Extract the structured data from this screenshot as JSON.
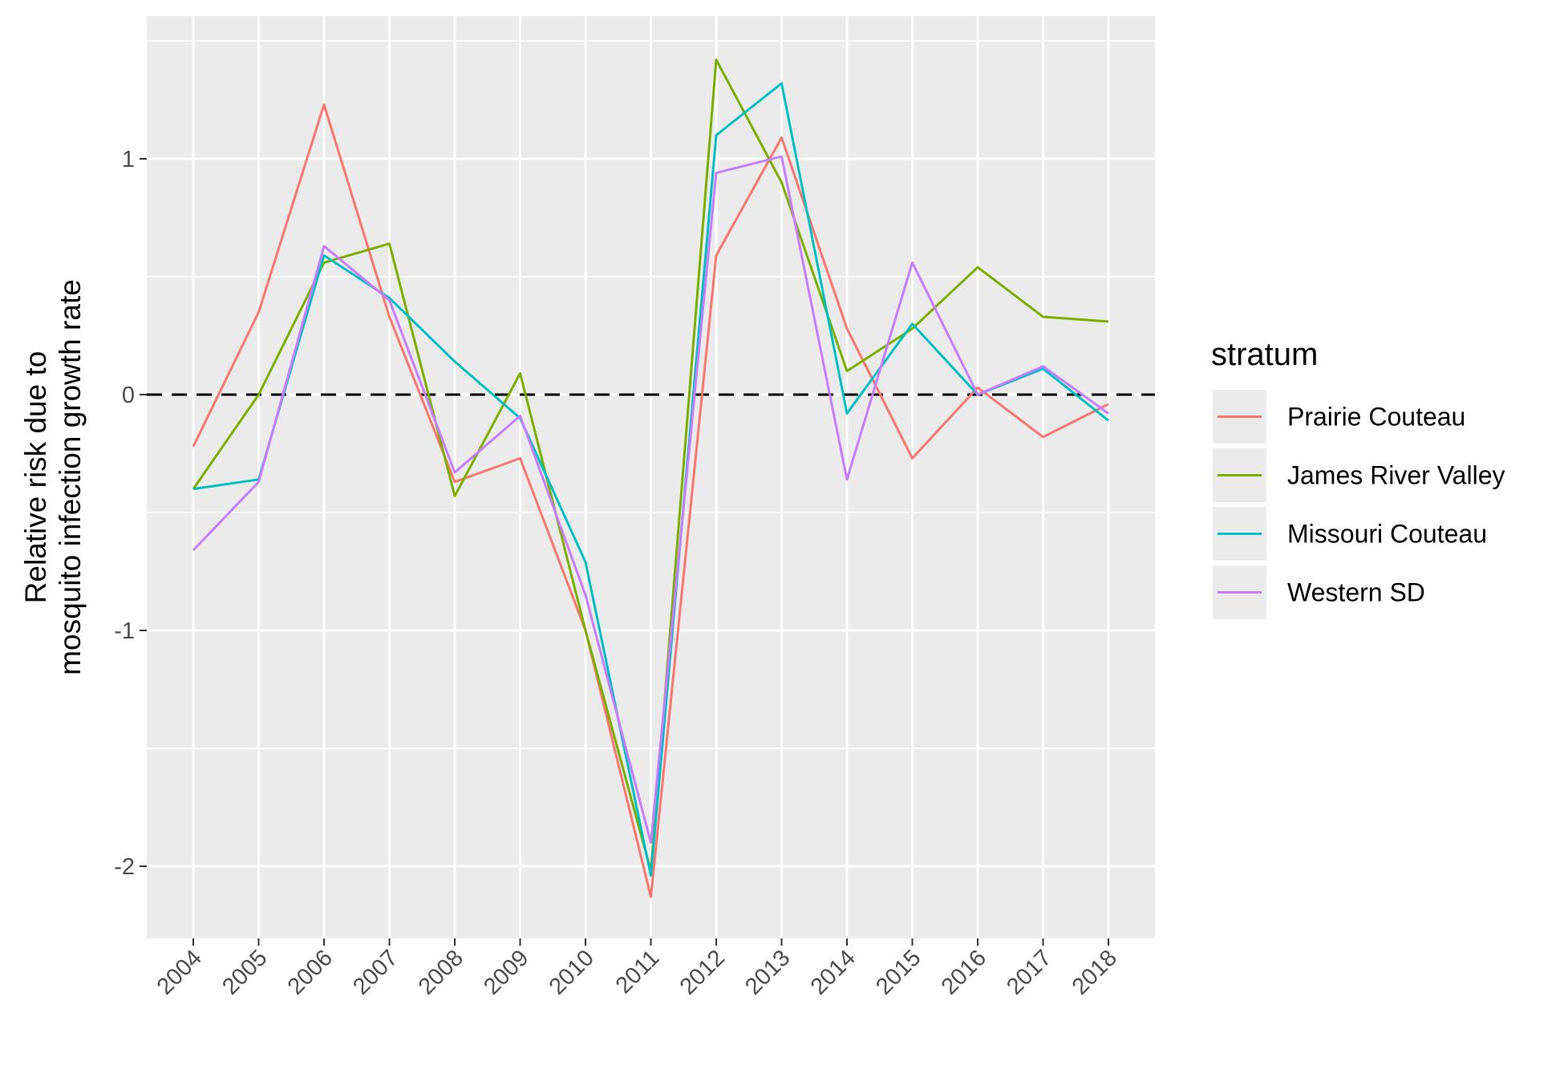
{
  "chart_data": {
    "type": "line",
    "x": [
      "2004",
      "2005",
      "2006",
      "2007",
      "2008",
      "2009",
      "2010",
      "2011",
      "2012",
      "2013",
      "2014",
      "2015",
      "2016",
      "2017",
      "2018"
    ],
    "ylabel": [
      "Relative risk due to",
      "mosquito infection growth rate"
    ],
    "xlabel": "",
    "title": "",
    "ylim": [
      -2.3,
      1.6
    ],
    "yticks": [
      -2,
      -1,
      0,
      1
    ],
    "ytick_labels": [
      "-2",
      "-1",
      "0",
      "1"
    ],
    "reference_line": {
      "y": 0,
      "style": "dashed",
      "color": "#000000"
    },
    "grid": true,
    "legend": {
      "title": "stratum",
      "position": "right"
    },
    "series": [
      {
        "name": "Prairie Couteau",
        "color": "#F8766D",
        "values": [
          -0.22,
          0.35,
          1.23,
          0.33,
          -0.37,
          -0.27,
          -1.0,
          -2.13,
          0.59,
          1.09,
          0.28,
          -0.27,
          0.03,
          -0.18,
          -0.04
        ]
      },
      {
        "name": "James River Valley",
        "color": "#7CAE00",
        "values": [
          -0.4,
          0.0,
          0.56,
          0.64,
          -0.43,
          0.09,
          -1.0,
          -2.02,
          1.42,
          0.9,
          0.1,
          0.28,
          0.54,
          0.33,
          0.31
        ]
      },
      {
        "name": "Missouri Couteau",
        "color": "#00BFC4",
        "values": [
          -0.4,
          -0.36,
          0.59,
          0.41,
          0.14,
          -0.1,
          -0.71,
          -2.04,
          1.1,
          1.32,
          -0.08,
          0.3,
          0.0,
          0.11,
          -0.11
        ]
      },
      {
        "name": "Western SD",
        "color": "#C77CFF",
        "values": [
          -0.66,
          -0.37,
          0.63,
          0.4,
          -0.33,
          -0.09,
          -0.85,
          -1.9,
          0.94,
          1.01,
          -0.36,
          0.56,
          0.0,
          0.12,
          -0.08
        ]
      }
    ]
  }
}
